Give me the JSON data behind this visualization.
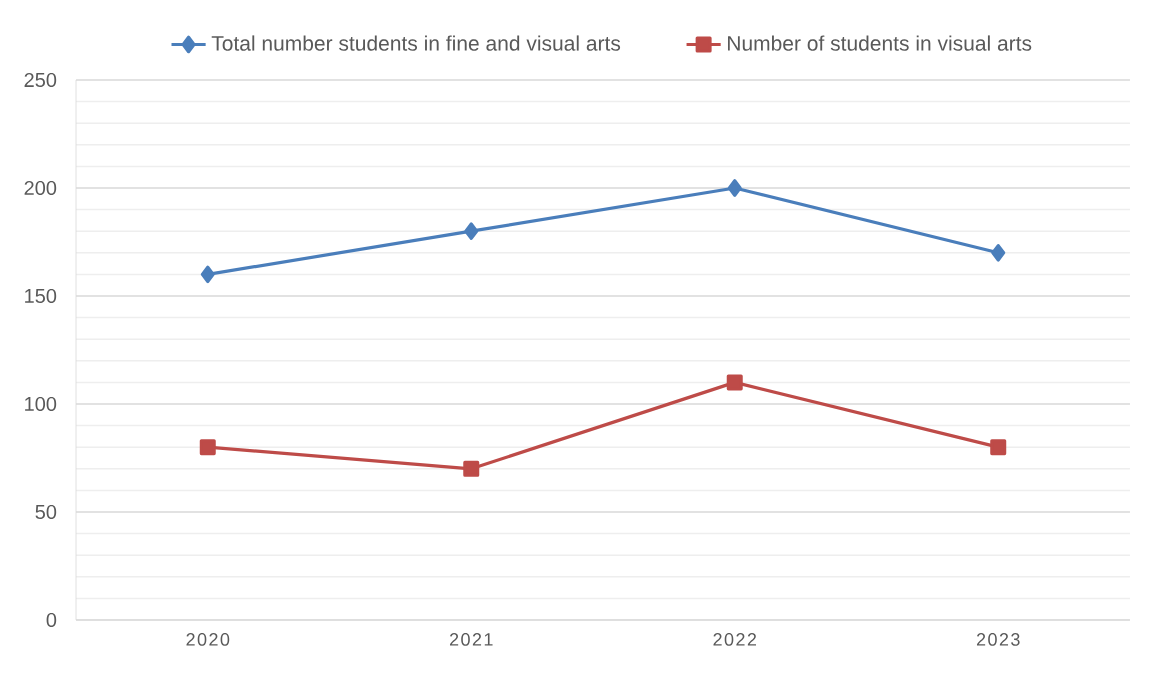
{
  "chart_data": {
    "type": "line",
    "categories": [
      "2020",
      "2021",
      "2022",
      "2023"
    ],
    "series": [
      {
        "name": "Total number students in fine and visual arts",
        "color": "#4a7ebb",
        "marker": "diamond",
        "values": [
          160,
          180,
          200,
          170
        ]
      },
      {
        "name": "Number of students in visual arts",
        "color": "#be4b48",
        "marker": "square",
        "values": [
          80,
          70,
          110,
          80
        ]
      }
    ],
    "ylim": [
      0,
      250
    ],
    "yticks": [
      0,
      50,
      100,
      150,
      200,
      250
    ],
    "grid": "y",
    "legend": "top"
  }
}
